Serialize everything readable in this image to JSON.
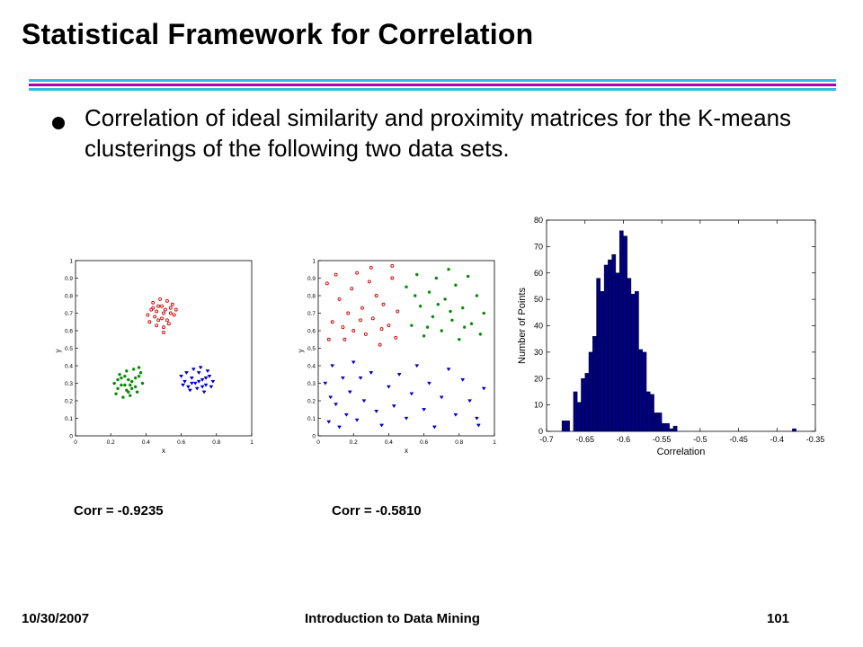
{
  "slide": {
    "title": "Statistical Framework for Correlation",
    "bullet": "Correlation of ideal similarity and proximity matrices for the K-means clusterings of the following two data sets."
  },
  "colors": {
    "red": "#cc0000",
    "green": "#008a00",
    "blue": "#0000cc",
    "bar": "#000080",
    "rule_cyan": "#3cb4e6",
    "rule_magenta": "#b000b0"
  },
  "captions": {
    "left": "Corr = -0.9235",
    "middle": "Corr = -0.5810"
  },
  "footer": {
    "date": "10/30/2007",
    "course": "Introduction to Data Mining",
    "page": "101"
  },
  "chart_data": [
    {
      "type": "scatter",
      "xlabel": "x",
      "ylabel": "y",
      "xlim": [
        0,
        1
      ],
      "ylim": [
        0,
        1
      ],
      "xticks": [
        "0",
        "0.2",
        "0.4",
        "0.6",
        "0.8",
        "1"
      ],
      "yticks": [
        "0",
        "0.1",
        "0.2",
        "0.3",
        "0.4",
        "0.5",
        "0.6",
        "0.7",
        "0.8",
        "0.9",
        "1"
      ],
      "series": [
        {
          "color": "red",
          "marker": "circle",
          "points": [
            [
              0.41,
              0.69
            ],
            [
              0.43,
              0.72
            ],
            [
              0.45,
              0.68
            ],
            [
              0.47,
              0.74
            ],
            [
              0.5,
              0.7
            ],
            [
              0.52,
              0.66
            ],
            [
              0.54,
              0.73
            ],
            [
              0.56,
              0.69
            ],
            [
              0.44,
              0.76
            ],
            [
              0.48,
              0.78
            ],
            [
              0.52,
              0.77
            ],
            [
              0.55,
              0.75
            ],
            [
              0.42,
              0.65
            ],
            [
              0.46,
              0.63
            ],
            [
              0.5,
              0.62
            ],
            [
              0.53,
              0.64
            ],
            [
              0.49,
              0.67
            ],
            [
              0.51,
              0.72
            ],
            [
              0.46,
              0.71
            ],
            [
              0.57,
              0.72
            ],
            [
              0.5,
              0.59
            ],
            [
              0.47,
              0.66
            ],
            [
              0.44,
              0.73
            ],
            [
              0.54,
              0.7
            ],
            [
              0.49,
              0.74
            ]
          ]
        },
        {
          "color": "green",
          "marker": "star",
          "points": [
            [
              0.22,
              0.3
            ],
            [
              0.24,
              0.27
            ],
            [
              0.26,
              0.33
            ],
            [
              0.28,
              0.29
            ],
            [
              0.3,
              0.25
            ],
            [
              0.32,
              0.31
            ],
            [
              0.34,
              0.28
            ],
            [
              0.36,
              0.34
            ],
            [
              0.38,
              0.3
            ],
            [
              0.25,
              0.35
            ],
            [
              0.29,
              0.37
            ],
            [
              0.33,
              0.38
            ],
            [
              0.37,
              0.36
            ],
            [
              0.23,
              0.24
            ],
            [
              0.27,
              0.22
            ],
            [
              0.31,
              0.23
            ],
            [
              0.35,
              0.25
            ],
            [
              0.3,
              0.32
            ],
            [
              0.26,
              0.29
            ],
            [
              0.34,
              0.33
            ],
            [
              0.29,
              0.26
            ],
            [
              0.32,
              0.27
            ],
            [
              0.28,
              0.34
            ],
            [
              0.36,
              0.39
            ],
            [
              0.24,
              0.32
            ],
            [
              0.31,
              0.29
            ]
          ]
        },
        {
          "color": "blue",
          "marker": "triangle",
          "points": [
            [
              0.6,
              0.34
            ],
            [
              0.62,
              0.31
            ],
            [
              0.64,
              0.28
            ],
            [
              0.66,
              0.33
            ],
            [
              0.68,
              0.3
            ],
            [
              0.7,
              0.36
            ],
            [
              0.72,
              0.32
            ],
            [
              0.74,
              0.29
            ],
            [
              0.76,
              0.34
            ],
            [
              0.78,
              0.31
            ],
            [
              0.63,
              0.36
            ],
            [
              0.67,
              0.38
            ],
            [
              0.71,
              0.39
            ],
            [
              0.75,
              0.37
            ],
            [
              0.65,
              0.26
            ],
            [
              0.69,
              0.27
            ],
            [
              0.73,
              0.25
            ],
            [
              0.77,
              0.28
            ],
            [
              0.61,
              0.29
            ],
            [
              0.7,
              0.31
            ],
            [
              0.74,
              0.33
            ],
            [
              0.66,
              0.3
            ],
            [
              0.72,
              0.28
            ]
          ]
        }
      ]
    },
    {
      "type": "scatter",
      "xlabel": "x",
      "ylabel": "y",
      "xlim": [
        0,
        1
      ],
      "ylim": [
        0,
        1
      ],
      "xticks": [
        "0",
        "0.2",
        "0.4",
        "0.6",
        "0.8",
        "1"
      ],
      "yticks": [
        "0",
        "0.1",
        "0.2",
        "0.3",
        "0.4",
        "0.5",
        "0.6",
        "0.7",
        "0.8",
        "0.9",
        "1"
      ],
      "series": [
        {
          "color": "red",
          "marker": "circle",
          "points": [
            [
              0.05,
              0.87
            ],
            [
              0.08,
              0.65
            ],
            [
              0.1,
              0.92
            ],
            [
              0.12,
              0.78
            ],
            [
              0.15,
              0.55
            ],
            [
              0.17,
              0.7
            ],
            [
              0.19,
              0.84
            ],
            [
              0.2,
              0.6
            ],
            [
              0.22,
              0.93
            ],
            [
              0.25,
              0.73
            ],
            [
              0.27,
              0.58
            ],
            [
              0.29,
              0.88
            ],
            [
              0.31,
              0.67
            ],
            [
              0.33,
              0.8
            ],
            [
              0.35,
              0.52
            ],
            [
              0.37,
              0.75
            ],
            [
              0.4,
              0.63
            ],
            [
              0.42,
              0.9
            ],
            [
              0.44,
              0.56
            ],
            [
              0.45,
              0.71
            ],
            [
              0.14,
              0.62
            ],
            [
              0.24,
              0.66
            ],
            [
              0.36,
              0.61
            ],
            [
              0.06,
              0.55
            ],
            [
              0.3,
              0.96
            ],
            [
              0.42,
              0.97
            ]
          ]
        },
        {
          "color": "green",
          "marker": "star",
          "points": [
            [
              0.5,
              0.85
            ],
            [
              0.53,
              0.63
            ],
            [
              0.56,
              0.92
            ],
            [
              0.58,
              0.74
            ],
            [
              0.6,
              0.57
            ],
            [
              0.63,
              0.82
            ],
            [
              0.65,
              0.68
            ],
            [
              0.67,
              0.9
            ],
            [
              0.7,
              0.6
            ],
            [
              0.72,
              0.78
            ],
            [
              0.74,
              0.95
            ],
            [
              0.76,
              0.66
            ],
            [
              0.78,
              0.86
            ],
            [
              0.8,
              0.55
            ],
            [
              0.82,
              0.73
            ],
            [
              0.85,
              0.91
            ],
            [
              0.87,
              0.64
            ],
            [
              0.9,
              0.8
            ],
            [
              0.92,
              0.58
            ],
            [
              0.94,
              0.7
            ],
            [
              0.55,
              0.8
            ],
            [
              0.62,
              0.62
            ],
            [
              0.68,
              0.75
            ],
            [
              0.75,
              0.71
            ],
            [
              0.83,
              0.62
            ]
          ]
        },
        {
          "color": "blue",
          "marker": "triangle",
          "points": [
            [
              0.04,
              0.3
            ],
            [
              0.06,
              0.08
            ],
            [
              0.08,
              0.4
            ],
            [
              0.1,
              0.18
            ],
            [
              0.12,
              0.05
            ],
            [
              0.14,
              0.33
            ],
            [
              0.16,
              0.12
            ],
            [
              0.18,
              0.25
            ],
            [
              0.2,
              0.42
            ],
            [
              0.22,
              0.09
            ],
            [
              0.26,
              0.2
            ],
            [
              0.3,
              0.36
            ],
            [
              0.33,
              0.14
            ],
            [
              0.36,
              0.06
            ],
            [
              0.4,
              0.28
            ],
            [
              0.43,
              0.17
            ],
            [
              0.46,
              0.35
            ],
            [
              0.5,
              0.1
            ],
            [
              0.53,
              0.24
            ],
            [
              0.56,
              0.4
            ],
            [
              0.6,
              0.15
            ],
            [
              0.63,
              0.3
            ],
            [
              0.66,
              0.05
            ],
            [
              0.7,
              0.22
            ],
            [
              0.74,
              0.38
            ],
            [
              0.78,
              0.12
            ],
            [
              0.82,
              0.32
            ],
            [
              0.86,
              0.2
            ],
            [
              0.9,
              0.1
            ],
            [
              0.94,
              0.27
            ],
            [
              0.24,
              0.33
            ],
            [
              0.07,
              0.22
            ],
            [
              0.91,
              0.06
            ]
          ]
        }
      ]
    },
    {
      "type": "bar",
      "xlabel": "Correlation",
      "ylabel": "Number of Points",
      "xlim": [
        -0.7,
        -0.35
      ],
      "ylim": [
        0,
        80
      ],
      "xticks": [
        "-0.7",
        "-0.65",
        "-0.6",
        "-0.55",
        "-0.5",
        "-0.45",
        "-0.4",
        "-0.35"
      ],
      "yticks": [
        "0",
        "10",
        "20",
        "30",
        "40",
        "50",
        "60",
        "70",
        "80"
      ],
      "bin_width": 0.005,
      "bin_centers": [
        -0.6775,
        -0.6725,
        -0.6675,
        -0.6625,
        -0.6575,
        -0.6525,
        -0.6475,
        -0.6425,
        -0.6375,
        -0.6325,
        -0.6275,
        -0.6225,
        -0.6175,
        -0.6125,
        -0.6075,
        -0.6025,
        -0.5975,
        -0.5925,
        -0.5875,
        -0.5825,
        -0.5775,
        -0.5725,
        -0.5675,
        -0.5625,
        -0.5575,
        -0.5525,
        -0.5475,
        -0.5425,
        -0.5375,
        -0.5325,
        -0.5275,
        -0.5225,
        -0.5175,
        -0.5125,
        -0.5075,
        -0.5025,
        -0.3775
      ],
      "values": [
        4,
        4,
        0,
        15,
        11,
        20,
        22,
        30,
        36,
        58,
        53,
        63,
        65,
        67,
        60,
        76,
        74,
        58,
        52,
        53,
        31,
        30,
        15,
        14,
        7,
        7,
        3,
        3,
        1,
        2,
        0,
        0,
        0,
        0,
        0,
        0,
        1
      ]
    }
  ]
}
